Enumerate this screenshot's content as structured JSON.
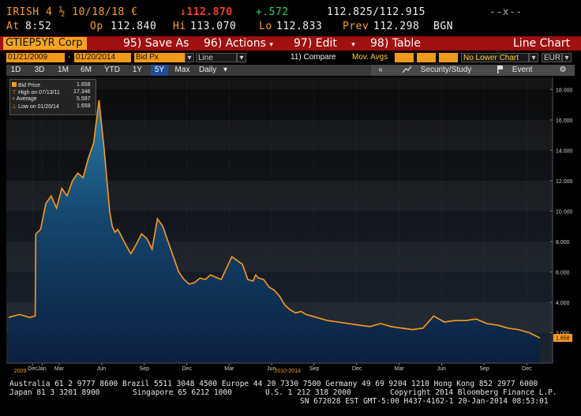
{
  "header": {
    "ticker_line": "IRISH 4 ½ 10/18/18 €",
    "price": "↓112.870",
    "change": "+.572",
    "bid_ask": "112.825/112.915",
    "window_controls": "--x--",
    "at_label": "At",
    "at_time": "8:52",
    "op_label": "Op",
    "op_value": "112.840",
    "hi_label": "Hi",
    "hi_value": "113.070",
    "lo_label": "Lo",
    "lo_value": "112.833",
    "prev_label": "Prev",
    "prev_value": "112.298",
    "source": "BGN"
  },
  "function_bar": {
    "ticker": "GTIEP5YR Corp",
    "save": "95) Save As",
    "actions": "96) Actions",
    "edit": "97) Edit",
    "table": "98) Table",
    "title": "Line Chart",
    "dropdown_glyph": "▾"
  },
  "params": {
    "start_date": "01/21/2009",
    "end_date": "01/20/2014",
    "field": "Bid Px",
    "chart_type": "Line",
    "compare": "11) Compare",
    "mov_avgs": "Mov. Avgs",
    "lower_chart": "No Lower Chart",
    "currency": "EUR",
    "separator": "-",
    "arrow": "▾"
  },
  "periods": [
    "1D",
    "3D",
    "1M",
    "6M",
    "YTD",
    "1Y",
    "5Y",
    "Max"
  ],
  "active_period": "5Y",
  "frequency": "Daily",
  "security_study": "Security/Study",
  "event": "Event",
  "collapse": "«",
  "legend": {
    "rows": [
      {
        "label": "Bid Price",
        "value": "1.658"
      },
      {
        "label": "High on 07/13/11",
        "value": "17.346"
      },
      {
        "label": "Average",
        "value": "5.597"
      },
      {
        "label": "Low on 01/20/14",
        "value": "1.658"
      }
    ]
  },
  "footer": {
    "line1": "Australia 61 2 9777 8600 Brazil 5511 3048 4500 Europe 44 20 7330 7500 Germany 49 69 9204 1210 Hong Kong 852 2977 6000",
    "line2_left": "Japan 81 3 3201 8900",
    "line2_mid1": "Singapore 65 6212 1000",
    "line2_mid2": "U.S. 1 212 318 2000",
    "line2_right": "Copyright 2014 Bloomberg Finance L.P.",
    "line3": "SN 672028 EST  GMT-5:00 H437-4162-1 20-Jan-2014 08:53:01"
  },
  "colors": {
    "line": "#ff9a1a",
    "function_bar": "#a01010",
    "ticker_box": "#f3a51f",
    "active_period": "#1f4f9a"
  },
  "chart_data": {
    "type": "area",
    "series": [
      {
        "name": "Bid Price"
      }
    ],
    "ylim": [
      0,
      18.8
    ],
    "yticks": [
      "2.000",
      "4.000",
      "6.000",
      "8.000",
      "10.000",
      "12.000",
      "14.000",
      "16.000",
      "18.000"
    ],
    "ytick_values": [
      2,
      4,
      6,
      8,
      10,
      12,
      14,
      16,
      18
    ],
    "last_value_label": "1.658",
    "month_ticks": [
      {
        "label": "Dec",
        "t": 0.045
      },
      {
        "label": "Jan",
        "t": 0.063
      },
      {
        "label": "Mar",
        "t": 0.095
      },
      {
        "label": "Jun",
        "t": 0.175
      },
      {
        "label": "Sep",
        "t": 0.255
      },
      {
        "label": "Dec",
        "t": 0.335
      },
      {
        "label": "Mar",
        "t": 0.415
      },
      {
        "label": "Jun",
        "t": 0.495
      },
      {
        "label": "Sep",
        "t": 0.575
      },
      {
        "label": "Dec",
        "t": 0.655
      },
      {
        "label": "Mar",
        "t": 0.735
      },
      {
        "label": "Jun",
        "t": 0.815
      },
      {
        "label": "Sep",
        "t": 0.895
      },
      {
        "label": "Dec",
        "t": 0.975
      }
    ],
    "year_labels": [
      {
        "label": "2009",
        "t": 0.01
      },
      {
        "label": "2010-2014",
        "t": 0.5
      }
    ],
    "x": [
      0,
      0.02,
      0.04,
      0.05,
      0.051,
      0.06,
      0.07,
      0.08,
      0.09,
      0.1,
      0.11,
      0.12,
      0.13,
      0.14,
      0.15,
      0.16,
      0.17,
      0.18,
      0.185,
      0.19,
      0.195,
      0.2,
      0.205,
      0.21,
      0.22,
      0.23,
      0.24,
      0.25,
      0.26,
      0.27,
      0.28,
      0.29,
      0.3,
      0.31,
      0.315,
      0.32,
      0.33,
      0.34,
      0.35,
      0.36,
      0.37,
      0.38,
      0.4,
      0.42,
      0.44,
      0.45,
      0.46,
      0.465,
      0.47,
      0.48,
      0.49,
      0.5,
      0.51,
      0.52,
      0.53,
      0.54,
      0.55,
      0.56,
      0.57,
      0.58,
      0.6,
      0.62,
      0.64,
      0.66,
      0.68,
      0.7,
      0.72,
      0.74,
      0.76,
      0.78,
      0.8,
      0.81,
      0.82,
      0.84,
      0.86,
      0.88,
      0.9,
      0.92,
      0.94,
      0.96,
      0.98,
      1.0
    ],
    "y": [
      3.0,
      3.2,
      3.0,
      3.1,
      8.5,
      8.8,
      10.5,
      11.0,
      10.2,
      11.5,
      11.0,
      12.0,
      12.5,
      12.2,
      13.5,
      14.5,
      17.3,
      14.0,
      12.0,
      10.0,
      9.0,
      8.6,
      8.8,
      8.5,
      7.8,
      7.2,
      7.8,
      8.5,
      8.2,
      7.5,
      9.5,
      9.0,
      8.0,
      7.0,
      6.5,
      6.0,
      5.5,
      5.2,
      5.3,
      5.6,
      5.5,
      5.8,
      5.5,
      7.0,
      6.5,
      5.5,
      5.4,
      5.8,
      5.6,
      5.5,
      5.0,
      4.8,
      4.4,
      3.8,
      3.5,
      3.3,
      3.4,
      3.2,
      3.1,
      3.0,
      2.8,
      2.7,
      2.6,
      2.5,
      2.4,
      2.6,
      2.4,
      2.3,
      2.2,
      2.3,
      3.1,
      2.9,
      2.7,
      2.8,
      2.8,
      2.9,
      2.6,
      2.5,
      2.3,
      2.2,
      2.0,
      1.658
    ]
  }
}
